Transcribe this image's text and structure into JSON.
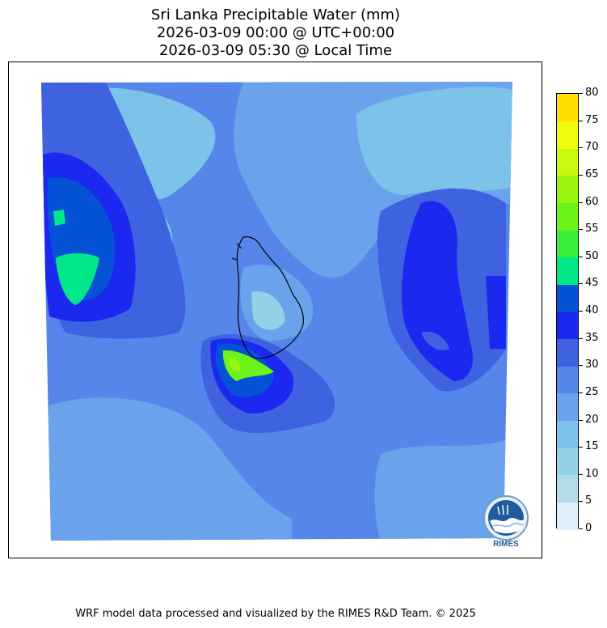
{
  "title": {
    "line1": "Sri Lanka Precipitable Water (mm)",
    "line2": "2026-03-09 00:00 @ UTC+00:00",
    "line3": "2026-03-09 05:30 @ Local Time"
  },
  "colorbar": {
    "labels": [
      "0",
      "5",
      "10",
      "15",
      "20",
      "25",
      "30",
      "35",
      "40",
      "45",
      "50",
      "55",
      "60",
      "65",
      "70",
      "75",
      "80"
    ],
    "colors": [
      "#dfeef8",
      "#b3dbe6",
      "#94d1e6",
      "#7cc3ea",
      "#6aa3ec",
      "#5786ea",
      "#3e62e0",
      "#1a28f0",
      "#0652d6",
      "#00e88a",
      "#38ee38",
      "#6cf41a",
      "#9af50e",
      "#c8fa10",
      "#eefb0a",
      "#ffdf00"
    ]
  },
  "map": {
    "region": "Sri Lanka",
    "field": "Precipitable Water",
    "unit": "mm",
    "icons": {
      "logo": "rimes-logo-icon"
    }
  },
  "logo": {
    "text": "RIMES"
  },
  "footer": {
    "credit": "WRF model data processed and visualized by the RIMES R&D Team. © 2025"
  }
}
